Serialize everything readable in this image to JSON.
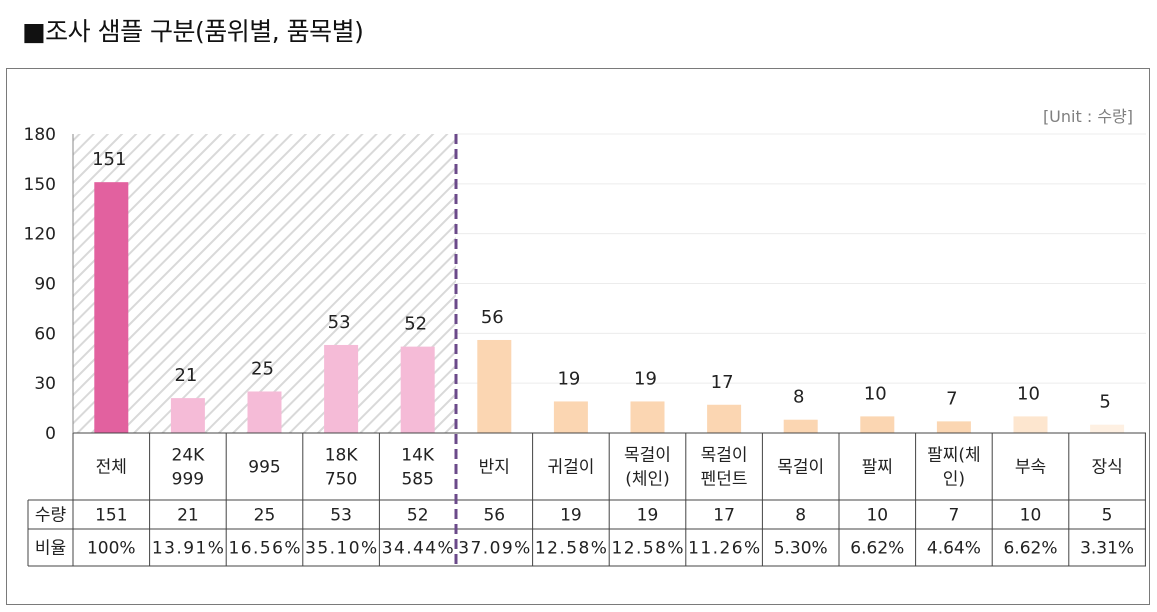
{
  "page_title": "■조사 샘플 구분(품위별, 품목별)",
  "unit_label": "[Unit : 수량]",
  "colors": {
    "total": "#e2619f",
    "purity": "#f5bbd7",
    "item_main": "#fbd6b2",
    "item_mid": "#fde6cf",
    "item_light": "#fef0e2",
    "divider": "#6b4a8a"
  },
  "chart_data": {
    "type": "bar",
    "categories": [
      "전체",
      "24K 999",
      "995",
      "18K 750",
      "14K 585",
      "반지",
      "귀걸이",
      "목걸이 (체인)",
      "목걸이 펜던트",
      "목걸이",
      "팔찌",
      "팔찌(체 인)",
      "부속",
      "장식"
    ],
    "category_lines": [
      [
        "전체"
      ],
      [
        "24K",
        "999"
      ],
      [
        "995"
      ],
      [
        "18K",
        "750"
      ],
      [
        "14K",
        "585"
      ],
      [
        "반지"
      ],
      [
        "귀걸이"
      ],
      [
        "목걸이",
        "(체인)"
      ],
      [
        "목걸이",
        "펜던트"
      ],
      [
        "목걸이"
      ],
      [
        "팔찌"
      ],
      [
        "팔찌(체",
        "인)"
      ],
      [
        "부속"
      ],
      [
        "장식"
      ]
    ],
    "values": [
      151,
      21,
      25,
      53,
      52,
      56,
      19,
      19,
      17,
      8,
      10,
      7,
      10,
      5
    ],
    "ratios": [
      "100%",
      "13.91%",
      "16.56%",
      "35.10%",
      "34.44%",
      "37.09%",
      "12.58%",
      "12.58%",
      "11.26%",
      "5.30%",
      "6.62%",
      "4.64%",
      "6.62%",
      "3.31%"
    ],
    "groups": [
      "total",
      "purity",
      "purity",
      "purity",
      "purity",
      "item_main",
      "item_main",
      "item_main",
      "item_main",
      "item_main",
      "item_main",
      "item_main",
      "item_mid",
      "item_light"
    ],
    "ylim": [
      0,
      180
    ],
    "yticks": [
      0,
      30,
      60,
      90,
      120,
      150,
      180
    ],
    "table_rows": [
      {
        "label": "수량",
        "key": "values"
      },
      {
        "label": "비율",
        "key": "ratios"
      }
    ],
    "grid": true,
    "legend": "none"
  }
}
